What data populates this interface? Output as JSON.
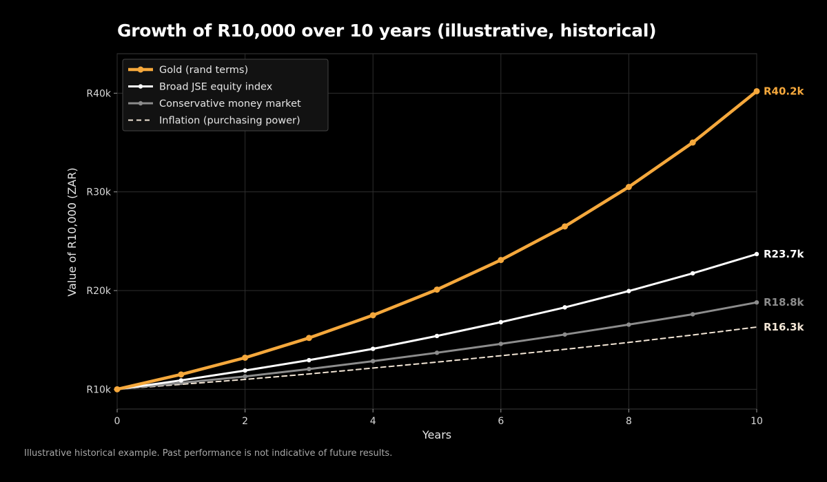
{
  "chart_data": {
    "type": "line",
    "title": "Growth of R10,000 over 10 years (illustrative, historical)",
    "xlabel": "Years",
    "ylabel": "Value of R10,000 (ZAR)",
    "xlim": [
      0,
      10
    ],
    "ylim": [
      8000,
      44000
    ],
    "x_ticks": [
      0,
      2,
      4,
      6,
      8,
      10
    ],
    "y_ticks": [
      10000,
      20000,
      30000,
      40000
    ],
    "y_tick_labels": [
      "R10k",
      "R20k",
      "R30k",
      "R40k"
    ],
    "grid": true,
    "legend_position": "top-left",
    "x": [
      0,
      1,
      2,
      3,
      4,
      5,
      6,
      7,
      8,
      9,
      10
    ],
    "series": [
      {
        "name": "Gold (rand terms)",
        "values": [
          10000,
          11500,
          13200,
          15200,
          17500,
          20100,
          23100,
          26500,
          30500,
          35000,
          40200
        ],
        "color": "#f5a83c",
        "style": "solid-markers",
        "end_label": "R40.2k"
      },
      {
        "name": "Broad JSE equity index",
        "values": [
          10000,
          10900,
          11900,
          12950,
          14100,
          15400,
          16800,
          18300,
          19950,
          21750,
          23700
        ],
        "color": "#ffffff",
        "style": "solid-markers",
        "end_label": "R23.7k"
      },
      {
        "name": "Conservative money market",
        "values": [
          10000,
          10650,
          11300,
          12050,
          12850,
          13700,
          14600,
          15550,
          16550,
          17600,
          18800
        ],
        "color": "#8c8c8c",
        "style": "solid-markers",
        "end_label": "R18.8k"
      },
      {
        "name": "Inflation (purchasing power)",
        "values": [
          10000,
          10500,
          11000,
          11550,
          12150,
          12750,
          13400,
          14050,
          14750,
          15500,
          16300
        ],
        "color": "#f3e6d6",
        "style": "dashed",
        "end_label": "R16.3k"
      }
    ]
  },
  "footnote": "Illustrative historical example. Past performance is not indicative of future results."
}
